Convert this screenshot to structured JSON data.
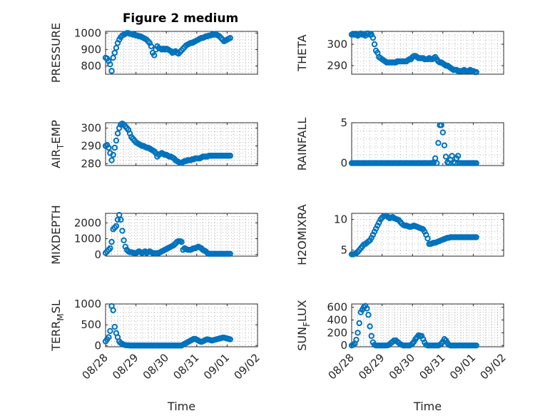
{
  "title": "Figure 2 medium",
  "x_axis": {
    "label": "Time",
    "tick_labels": [
      "08/28",
      "08/29",
      "08/30",
      "08/31",
      "09/01",
      "09/02"
    ]
  },
  "marker_color": "#0072BD",
  "chart_data": [
    {
      "type": "scatter",
      "ylabel": "PRESSURE",
      "ylim": [
        750,
        1010
      ],
      "yticks": [
        800,
        900,
        1000
      ],
      "grid": true,
      "x": [
        0,
        0.05,
        0.1,
        0.15,
        0.2,
        0.25,
        0.3,
        0.35,
        0.4,
        0.45,
        0.5,
        0.55,
        0.6,
        0.65,
        0.7,
        0.75,
        0.8,
        0.85,
        0.9,
        0.95,
        1.0,
        1.05,
        1.1,
        1.15,
        1.2,
        1.25,
        1.3,
        1.35,
        1.4,
        1.45,
        1.5,
        1.55,
        1.6,
        1.65,
        1.7,
        1.75,
        1.8,
        1.85,
        1.9,
        1.95,
        2.0,
        2.05,
        2.1,
        2.15,
        2.2,
        2.25,
        2.3,
        2.35,
        2.4,
        2.45,
        2.5,
        2.55,
        2.6,
        2.65,
        2.7,
        2.75,
        2.8,
        2.85,
        2.9,
        2.95,
        3.0,
        3.05,
        3.1,
        3.15,
        3.2,
        3.25,
        3.3,
        3.35,
        3.4,
        3.45,
        3.5,
        3.55,
        3.6,
        3.65,
        3.7,
        3.75,
        3.8,
        3.85,
        3.9,
        3.95,
        4.0,
        4.05,
        4.1
      ],
      "y": [
        850,
        845,
        830,
        810,
        770,
        850,
        880,
        910,
        940,
        960,
        975,
        985,
        990,
        995,
        1000,
        1000,
        995,
        995,
        990,
        990,
        985,
        985,
        980,
        980,
        975,
        970,
        965,
        960,
        950,
        940,
        920,
        880,
        865,
        900,
        920,
        910,
        905,
        900,
        905,
        900,
        905,
        900,
        895,
        890,
        880,
        885,
        890,
        880,
        875,
        885,
        895,
        905,
        915,
        925,
        930,
        935,
        940,
        940,
        945,
        950,
        955,
        960,
        965,
        970,
        970,
        975,
        980,
        980,
        985,
        985,
        990,
        990,
        995,
        990,
        985,
        980,
        970,
        960,
        950,
        955,
        960,
        965,
        970
      ]
    },
    {
      "type": "scatter",
      "ylabel": "THETA",
      "ylim": [
        286,
        306
      ],
      "yticks": [
        290,
        300
      ],
      "grid": true,
      "x": [
        0,
        0.05,
        0.1,
        0.15,
        0.2,
        0.25,
        0.3,
        0.35,
        0.4,
        0.45,
        0.5,
        0.55,
        0.6,
        0.65,
        0.7,
        0.75,
        0.8,
        0.85,
        0.9,
        0.95,
        1.0,
        1.05,
        1.1,
        1.15,
        1.2,
        1.25,
        1.3,
        1.35,
        1.4,
        1.45,
        1.5,
        1.55,
        1.6,
        1.65,
        1.7,
        1.75,
        1.8,
        1.85,
        1.9,
        1.95,
        2.0,
        2.05,
        2.1,
        2.15,
        2.2,
        2.25,
        2.3,
        2.35,
        2.4,
        2.45,
        2.5,
        2.55,
        2.6,
        2.65,
        2.7,
        2.75,
        2.8,
        2.85,
        2.9,
        2.95,
        3.0,
        3.05,
        3.1,
        3.15,
        3.2,
        3.25,
        3.3,
        3.35,
        3.4,
        3.45,
        3.5,
        3.55,
        3.6,
        3.65,
        3.7,
        3.75,
        3.8,
        3.85,
        3.9,
        3.95,
        4.0,
        4.05,
        4.1
      ],
      "y": [
        304.5,
        304.5,
        304.5,
        304.5,
        304,
        304.5,
        305,
        304.5,
        304.5,
        304,
        305,
        305,
        304.5,
        304.5,
        303,
        300,
        297,
        296,
        294,
        293.5,
        293,
        292.5,
        292,
        291.5,
        291.5,
        291.5,
        291.5,
        291.5,
        291.5,
        291.5,
        292,
        292,
        292,
        292,
        292,
        292,
        292,
        292.5,
        293,
        293,
        294,
        294.5,
        294.5,
        294,
        293.5,
        293.5,
        293.5,
        293.5,
        293,
        293,
        293,
        293.5,
        293,
        293,
        293.5,
        294,
        293,
        292,
        291.5,
        291.5,
        291,
        290.5,
        290,
        290,
        289.5,
        289,
        288.5,
        288,
        288,
        288,
        287.5,
        287.5,
        287.5,
        287.5,
        288,
        287.5,
        287.5,
        287.5,
        288,
        287.5,
        287.5,
        287,
        287
      ]
    },
    {
      "type": "scatter",
      "ylabel": "AIR_TEMP",
      "ylim": [
        279,
        303
      ],
      "yticks": [
        280,
        290,
        300
      ],
      "grid": true,
      "x": [
        0,
        0.05,
        0.1,
        0.15,
        0.2,
        0.25,
        0.3,
        0.35,
        0.4,
        0.45,
        0.5,
        0.55,
        0.6,
        0.65,
        0.7,
        0.75,
        0.8,
        0.85,
        0.9,
        0.95,
        1.0,
        1.05,
        1.1,
        1.15,
        1.2,
        1.25,
        1.3,
        1.35,
        1.4,
        1.45,
        1.5,
        1.55,
        1.6,
        1.65,
        1.7,
        1.75,
        1.8,
        1.85,
        1.9,
        1.95,
        2.0,
        2.05,
        2.1,
        2.15,
        2.2,
        2.25,
        2.3,
        2.35,
        2.4,
        2.45,
        2.5,
        2.55,
        2.6,
        2.65,
        2.7,
        2.75,
        2.8,
        2.85,
        2.9,
        2.95,
        3.0,
        3.05,
        3.1,
        3.15,
        3.2,
        3.25,
        3.3,
        3.35,
        3.4,
        3.45,
        3.5,
        3.55,
        3.6,
        3.65,
        3.7,
        3.75,
        3.8,
        3.85,
        3.9,
        3.95,
        4.0,
        4.05,
        4.1
      ],
      "y": [
        290,
        290.5,
        289,
        286,
        282,
        285,
        289,
        293,
        297,
        300,
        302,
        302.5,
        302,
        301,
        300,
        299,
        297,
        295,
        294,
        293,
        292,
        291.5,
        291,
        290.5,
        290,
        290,
        289.5,
        289,
        289,
        288.5,
        288,
        287.5,
        287,
        286,
        284,
        285,
        285.5,
        286,
        285.5,
        285,
        285,
        284.5,
        284,
        284,
        283.5,
        283,
        282,
        281.5,
        281,
        280.5,
        280.5,
        281,
        281.5,
        281.5,
        282,
        282,
        282,
        282.5,
        282.5,
        283,
        283,
        283,
        283,
        283.5,
        284,
        284,
        284,
        284,
        284.5,
        284.5,
        284.5,
        284.5,
        284.5,
        284.5,
        284.5,
        284.5,
        284.5,
        284.5,
        284.5,
        284.5,
        284.5,
        284.5,
        284.5
      ]
    },
    {
      "type": "scatter",
      "ylabel": "RAINFALL",
      "ylim": [
        -0.3,
        5
      ],
      "yticks": [
        0,
        5
      ],
      "grid": true,
      "x": [
        0,
        0.05,
        0.1,
        0.15,
        0.2,
        0.25,
        0.3,
        0.35,
        0.4,
        0.45,
        0.5,
        0.55,
        0.6,
        0.65,
        0.7,
        0.75,
        0.8,
        0.85,
        0.9,
        0.95,
        1.0,
        1.05,
        1.1,
        1.15,
        1.2,
        1.25,
        1.3,
        1.35,
        1.4,
        1.45,
        1.5,
        1.55,
        1.6,
        1.65,
        1.7,
        1.75,
        1.8,
        1.85,
        1.9,
        1.95,
        2.0,
        2.05,
        2.1,
        2.15,
        2.2,
        2.25,
        2.3,
        2.35,
        2.4,
        2.45,
        2.5,
        2.55,
        2.6,
        2.65,
        2.7,
        2.75,
        2.8,
        2.85,
        2.9,
        2.95,
        3.0,
        3.05,
        3.1,
        3.15,
        3.2,
        3.25,
        3.3,
        3.35,
        3.4,
        3.45,
        3.5,
        3.55,
        3.6,
        3.65,
        3.7,
        3.75,
        3.8,
        3.85,
        3.9,
        3.95,
        4.0,
        4.05,
        4.1
      ],
      "y": [
        0,
        0,
        0,
        0,
        0,
        0,
        0,
        0,
        0,
        0,
        0,
        0,
        0,
        0,
        0,
        0,
        0,
        0,
        0,
        0,
        0,
        0,
        0,
        0,
        0,
        0,
        0,
        0,
        0,
        0,
        0,
        0,
        0,
        0,
        0,
        0,
        0,
        0,
        0,
        0,
        0,
        0,
        0,
        0,
        0,
        0,
        0,
        0,
        0,
        0,
        0,
        0,
        0,
        0,
        0.1,
        0.6,
        0,
        2.5,
        4.7,
        4.7,
        3.8,
        2.2,
        0.8,
        0.1,
        0,
        0.4,
        0.9,
        0.1,
        0,
        0.6,
        0.9,
        0,
        0,
        0,
        0,
        0,
        0,
        0,
        0,
        0,
        0,
        0,
        0
      ]
    },
    {
      "type": "scatter",
      "ylabel": "MIXDEPTH",
      "ylim": [
        -100,
        2600
      ],
      "yticks": [
        0,
        1000,
        2000
      ],
      "grid": true,
      "x": [
        0,
        0.05,
        0.1,
        0.15,
        0.2,
        0.25,
        0.3,
        0.35,
        0.4,
        0.45,
        0.5,
        0.55,
        0.6,
        0.65,
        0.7,
        0.75,
        0.8,
        0.85,
        0.9,
        0.95,
        1.0,
        1.05,
        1.1,
        1.15,
        1.2,
        1.25,
        1.3,
        1.35,
        1.4,
        1.45,
        1.5,
        1.55,
        1.6,
        1.65,
        1.7,
        1.75,
        1.8,
        1.85,
        1.9,
        1.95,
        2.0,
        2.05,
        2.1,
        2.15,
        2.2,
        2.25,
        2.3,
        2.35,
        2.4,
        2.45,
        2.5,
        2.55,
        2.6,
        2.65,
        2.7,
        2.75,
        2.8,
        2.85,
        2.9,
        2.95,
        3.0,
        3.05,
        3.1,
        3.15,
        3.2,
        3.25,
        3.3,
        3.35,
        3.4,
        3.45,
        3.5,
        3.55,
        3.6,
        3.65,
        3.7,
        3.75,
        3.8,
        3.85,
        3.9,
        3.95,
        4.0,
        4.05,
        4.1
      ],
      "y": [
        100,
        200,
        300,
        400,
        800,
        1600,
        1700,
        1800,
        2200,
        2500,
        2200,
        1500,
        900,
        500,
        300,
        200,
        150,
        150,
        120,
        100,
        100,
        150,
        200,
        150,
        100,
        150,
        200,
        100,
        150,
        200,
        150,
        100,
        100,
        50,
        100,
        100,
        150,
        200,
        250,
        300,
        350,
        400,
        450,
        500,
        550,
        600,
        700,
        800,
        850,
        850,
        800,
        300,
        400,
        350,
        300,
        300,
        300,
        350,
        400,
        400,
        450,
        500,
        450,
        400,
        300,
        250,
        200,
        100,
        50,
        50,
        50,
        50,
        50,
        50,
        50,
        50,
        50,
        50,
        50,
        50,
        50,
        50,
        50
      ]
    },
    {
      "type": "scatter",
      "ylabel": "H2OMIXRA",
      "ylim": [
        4,
        11
      ],
      "yticks": [
        5,
        10
      ],
      "grid": true,
      "x": [
        0,
        0.05,
        0.1,
        0.15,
        0.2,
        0.25,
        0.3,
        0.35,
        0.4,
        0.45,
        0.5,
        0.55,
        0.6,
        0.65,
        0.7,
        0.75,
        0.8,
        0.85,
        0.9,
        0.95,
        1.0,
        1.05,
        1.1,
        1.15,
        1.2,
        1.25,
        1.3,
        1.35,
        1.4,
        1.45,
        1.5,
        1.55,
        1.6,
        1.65,
        1.7,
        1.75,
        1.8,
        1.85,
        1.9,
        1.95,
        2.0,
        2.05,
        2.1,
        2.15,
        2.2,
        2.25,
        2.3,
        2.35,
        2.4,
        2.45,
        2.5,
        2.55,
        2.6,
        2.65,
        2.7,
        2.75,
        2.8,
        2.85,
        2.9,
        2.95,
        3.0,
        3.05,
        3.1,
        3.15,
        3.2,
        3.25,
        3.3,
        3.35,
        3.4,
        3.45,
        3.5,
        3.55,
        3.6,
        3.65,
        3.7,
        3.75,
        3.8,
        3.85,
        3.9,
        3.95,
        4.0,
        4.05,
        4.1
      ],
      "y": [
        4.3,
        4.3,
        4.4,
        4.5,
        4.7,
        5.0,
        5.3,
        5.6,
        5.9,
        6.0,
        6.2,
        6.4,
        6.6,
        7.0,
        7.5,
        8.0,
        8.5,
        9.0,
        9.5,
        10.0,
        10.3,
        10.5,
        10.6,
        10.6,
        10.4,
        10.2,
        10.3,
        10.4,
        10.2,
        10.1,
        10.0,
        9.9,
        9.6,
        9.3,
        9.1,
        9.0,
        9.0,
        8.9,
        8.8,
        8.8,
        8.9,
        9.0,
        8.9,
        8.8,
        8.7,
        8.6,
        8.5,
        8.4,
        8.0,
        7.5,
        6.9,
        6.0,
        6.0,
        6.1,
        6.2,
        6.2,
        6.3,
        6.4,
        6.5,
        6.6,
        6.7,
        6.8,
        6.9,
        7.0,
        7.0,
        7.1,
        7.1,
        7.1,
        7.1,
        7.1,
        7.1,
        7.1,
        7.1,
        7.1,
        7.1,
        7.1,
        7.1,
        7.1,
        7.1,
        7.1,
        7.1,
        7.1,
        7.1
      ]
    },
    {
      "type": "scatter",
      "ylabel": "TERR_MSL",
      "ylim": [
        -30,
        1000
      ],
      "yticks": [
        0,
        500,
        1000
      ],
      "grid": true,
      "x": [
        0,
        0.05,
        0.1,
        0.15,
        0.2,
        0.25,
        0.3,
        0.35,
        0.4,
        0.45,
        0.5,
        0.55,
        0.6,
        0.65,
        0.7,
        0.75,
        0.8,
        0.85,
        0.9,
        0.95,
        1.0,
        1.05,
        1.1,
        1.15,
        1.2,
        1.25,
        1.3,
        1.35,
        1.4,
        1.45,
        1.5,
        1.55,
        1.6,
        1.65,
        1.7,
        1.75,
        1.8,
        1.85,
        1.9,
        1.95,
        2.0,
        2.05,
        2.1,
        2.15,
        2.2,
        2.25,
        2.3,
        2.35,
        2.4,
        2.45,
        2.5,
        2.55,
        2.6,
        2.65,
        2.7,
        2.75,
        2.8,
        2.85,
        2.9,
        2.95,
        3.0,
        3.05,
        3.1,
        3.15,
        3.2,
        3.25,
        3.3,
        3.35,
        3.4,
        3.45,
        3.5,
        3.55,
        3.6,
        3.65,
        3.7,
        3.75,
        3.8,
        3.85,
        3.9,
        3.95,
        4.0,
        4.05,
        4.1
      ],
      "y": [
        100,
        150,
        200,
        350,
        950,
        850,
        450,
        300,
        200,
        100,
        60,
        40,
        20,
        10,
        5,
        5,
        0,
        0,
        0,
        0,
        0,
        0,
        0,
        0,
        0,
        0,
        0,
        0,
        0,
        0,
        0,
        0,
        0,
        0,
        0,
        0,
        0,
        0,
        0,
        0,
        0,
        0,
        0,
        0,
        0,
        0,
        0,
        0,
        0,
        0,
        0,
        20,
        40,
        60,
        80,
        100,
        120,
        140,
        160,
        160,
        140,
        120,
        100,
        90,
        100,
        120,
        140,
        150,
        140,
        130,
        120,
        130,
        140,
        150,
        160,
        170,
        180,
        190,
        190,
        180,
        170,
        160,
        150
      ]
    },
    {
      "type": "scatter",
      "ylabel": "SUN_FLUX",
      "ylim": [
        -20,
        650
      ],
      "yticks": [
        0,
        200,
        400,
        600
      ],
      "grid": true,
      "x": [
        0,
        0.05,
        0.1,
        0.15,
        0.2,
        0.25,
        0.3,
        0.35,
        0.4,
        0.45,
        0.5,
        0.55,
        0.6,
        0.65,
        0.7,
        0.75,
        0.8,
        0.85,
        0.9,
        0.95,
        1.0,
        1.05,
        1.1,
        1.15,
        1.2,
        1.25,
        1.3,
        1.35,
        1.4,
        1.45,
        1.5,
        1.55,
        1.6,
        1.65,
        1.7,
        1.75,
        1.8,
        1.85,
        1.9,
        1.95,
        2.0,
        2.05,
        2.1,
        2.15,
        2.2,
        2.25,
        2.3,
        2.35,
        2.4,
        2.45,
        2.5,
        2.55,
        2.6,
        2.65,
        2.7,
        2.75,
        2.8,
        2.85,
        2.9,
        2.95,
        3.0,
        3.05,
        3.1,
        3.15,
        3.2,
        3.25,
        3.3,
        3.35,
        3.4,
        3.45,
        3.5,
        3.55,
        3.6,
        3.65,
        3.7,
        3.75,
        3.8,
        3.85,
        3.9,
        3.95,
        4.0,
        4.05,
        4.1
      ],
      "y": [
        0,
        10,
        30,
        90,
        200,
        350,
        520,
        560,
        600,
        620,
        580,
        480,
        300,
        150,
        50,
        10,
        0,
        0,
        0,
        0,
        0,
        0,
        0,
        0,
        5,
        20,
        40,
        60,
        80,
        80,
        60,
        40,
        20,
        10,
        0,
        0,
        0,
        0,
        0,
        10,
        30,
        60,
        100,
        130,
        160,
        150,
        150,
        100,
        50,
        10,
        0,
        0,
        0,
        0,
        0,
        0,
        0,
        0,
        10,
        30,
        60,
        100,
        80,
        40,
        10,
        0,
        0,
        0,
        0,
        0,
        0,
        0,
        0,
        0,
        0,
        0,
        0,
        0,
        0,
        0,
        0,
        0,
        0
      ]
    }
  ]
}
